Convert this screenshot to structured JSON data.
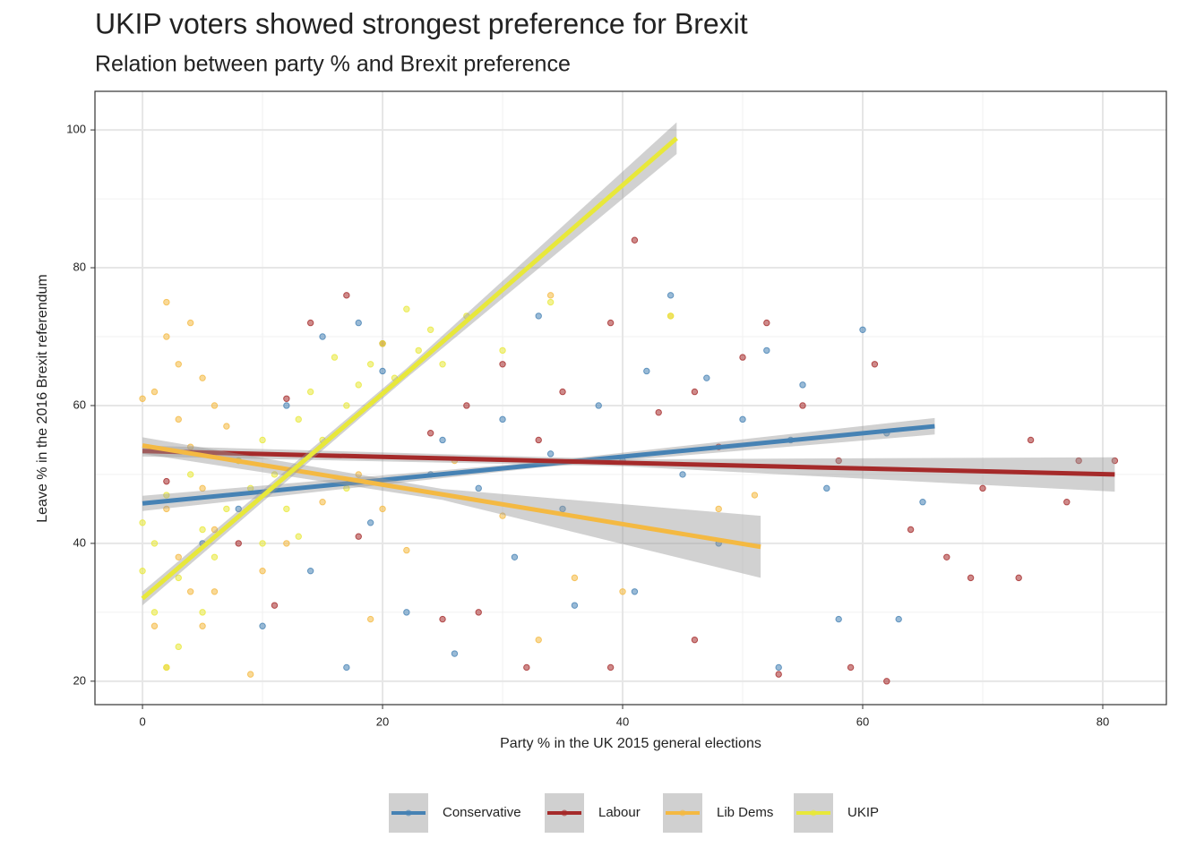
{
  "chart_data": {
    "type": "scatter",
    "title": "UKIP voters showed strongest preference for Brexit",
    "subtitle": "Relation between party % and Brexit preference",
    "x_label": "Party % in the UK 2015 general elections",
    "y_label": "Leave % in the 2016 Brexit referendum",
    "xlim": [
      -3.96,
      85.3
    ],
    "ylim": [
      16.6,
      105.6
    ],
    "xticks": [
      0,
      20,
      40,
      60,
      80
    ],
    "yticks": [
      20,
      40,
      60,
      80,
      100
    ],
    "xminor": [
      10,
      30,
      50,
      70
    ],
    "yminor": [
      30,
      50,
      70,
      90
    ],
    "grid": true,
    "legend": "bottom",
    "series": [
      {
        "name": "Conservative",
        "color": "#4682b4",
        "x": [
          12,
          15,
          18,
          20,
          25,
          28,
          30,
          33,
          35,
          38,
          40,
          42,
          44,
          45,
          47,
          50,
          52,
          54,
          55,
          57,
          60,
          62,
          65,
          8,
          10,
          14,
          17,
          22,
          26,
          31,
          36,
          41,
          48,
          53,
          58,
          63,
          5,
          19,
          24,
          34
        ],
        "y": [
          60,
          70,
          72,
          65,
          55,
          48,
          58,
          73,
          45,
          60,
          52,
          65,
          76,
          50,
          64,
          58,
          68,
          55,
          63,
          48,
          71,
          56,
          46,
          45,
          28,
          36,
          22,
          30,
          24,
          38,
          31,
          33,
          40,
          22,
          29,
          29,
          40,
          43,
          50,
          53
        ],
        "fit": {
          "x": [
            0,
            33,
            66
          ],
          "y": [
            45.8,
            51.4,
            57
          ],
          "lower": [
            44.7,
            51,
            55.8
          ],
          "upper": [
            46.9,
            51.8,
            58.2
          ]
        }
      },
      {
        "name": "Labour",
        "color": "#a52a2a",
        "x": [
          2,
          8,
          12,
          14,
          17,
          20,
          24,
          27,
          30,
          33,
          35,
          39,
          41,
          43,
          46,
          48,
          50,
          52,
          55,
          58,
          61,
          64,
          67,
          70,
          74,
          78,
          81,
          77,
          73,
          69,
          62,
          59,
          53,
          46,
          39,
          32,
          28,
          25,
          18,
          11
        ],
        "y": [
          49,
          40,
          61,
          72,
          76,
          69,
          56,
          60,
          66,
          55,
          62,
          72,
          84,
          59,
          62,
          54,
          67,
          72,
          60,
          52,
          66,
          42,
          38,
          48,
          55,
          52,
          52,
          46,
          35,
          35,
          20,
          22,
          21,
          26,
          22,
          22,
          30,
          29,
          41,
          31
        ],
        "fit": {
          "x": [
            0,
            40,
            81
          ],
          "y": [
            53.4,
            51.7,
            50
          ],
          "lower": [
            52.6,
            51.2,
            47.5
          ],
          "upper": [
            54.2,
            52.2,
            52.5
          ]
        }
      },
      {
        "name": "Lib Dems",
        "color": "#f4b942",
        "x": [
          1,
          2,
          2,
          3,
          3,
          4,
          4,
          5,
          5,
          6,
          6,
          7,
          8,
          2,
          3,
          4,
          1,
          2,
          5,
          6,
          9,
          10,
          12,
          15,
          18,
          20,
          22,
          26,
          30,
          34,
          36,
          40,
          44,
          48,
          51,
          33,
          19,
          0
        ],
        "y": [
          62,
          75,
          70,
          66,
          58,
          72,
          54,
          64,
          48,
          60,
          42,
          57,
          52,
          45,
          38,
          33,
          28,
          22,
          28,
          33,
          21,
          36,
          40,
          46,
          50,
          45,
          39,
          52,
          44,
          76,
          35,
          33,
          73,
          45,
          47,
          26,
          29,
          61
        ],
        "fit": {
          "x": [
            0,
            25,
            51.5
          ],
          "y": [
            54.2,
            47.1,
            39.5
          ],
          "lower": [
            53,
            46.3,
            35
          ],
          "upper": [
            55.4,
            47.9,
            44
          ]
        }
      },
      {
        "name": "UKIP",
        "color": "#e8e83a",
        "x": [
          0,
          0,
          1,
          1,
          2,
          2,
          3,
          3,
          4,
          5,
          5,
          6,
          7,
          8,
          9,
          10,
          11,
          12,
          13,
          14,
          15,
          16,
          17,
          18,
          19,
          20,
          21,
          22,
          23,
          24,
          25,
          27,
          30,
          34,
          44,
          10,
          13,
          17
        ],
        "y": [
          36,
          43,
          30,
          40,
          22,
          47,
          35,
          25,
          50,
          30,
          42,
          38,
          45,
          52,
          48,
          55,
          50,
          45,
          58,
          62,
          55,
          67,
          60,
          63,
          66,
          69,
          64,
          74,
          68,
          71,
          66,
          73,
          68,
          75,
          73,
          40,
          41,
          48
        ],
        "fit": {
          "x": [
            0,
            22,
            44.5
          ],
          "y": [
            32,
            64.7,
            98.8
          ],
          "lower": [
            31,
            64,
            96.5
          ],
          "upper": [
            33,
            65.4,
            101.1
          ]
        }
      }
    ]
  }
}
